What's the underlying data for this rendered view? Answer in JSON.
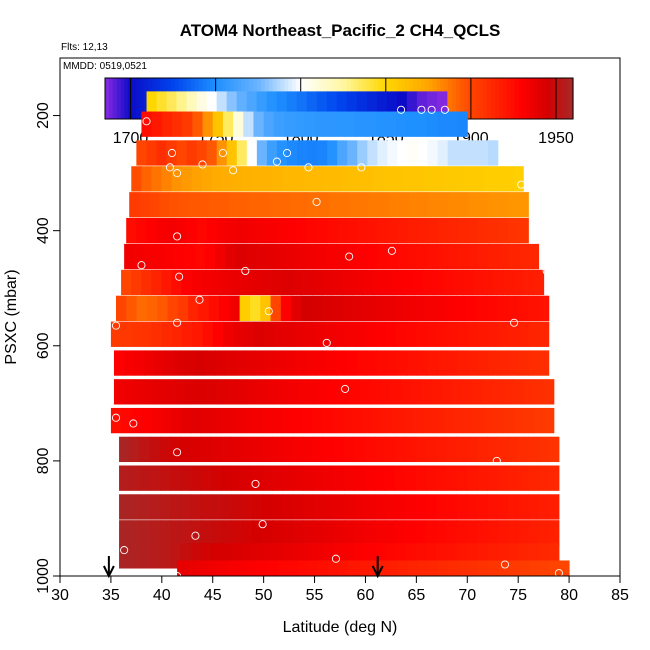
{
  "chart_data": {
    "type": "heatmap",
    "title": "ATOM4 Northeast_Pacific_2 CH4_QCLS",
    "flights_note": "Flts: 12,13",
    "date_note": "MMDD: 0519,0521",
    "xlabel": "Latitude (deg N)",
    "ylabel": "PSXC (mbar)",
    "xlim": [
      30,
      85
    ],
    "ylim": [
      1000,
      100
    ],
    "y_reversed": true,
    "x_ticks": [
      30,
      35,
      40,
      45,
      50,
      55,
      60,
      65,
      70,
      75,
      80,
      85
    ],
    "y_ticks": [
      200,
      400,
      600,
      800,
      1000
    ],
    "colorbar": {
      "min": 1685,
      "max": 1960,
      "ticks": [
        1700,
        1750,
        1800,
        1850,
        1900,
        1950
      ],
      "stops": [
        {
          "v": 1685,
          "c": "#8a2be2"
        },
        {
          "v": 1700,
          "c": "#0b0bc8"
        },
        {
          "v": 1725,
          "c": "#0044ee"
        },
        {
          "v": 1750,
          "c": "#1e90ff"
        },
        {
          "v": 1775,
          "c": "#6ab4ff"
        },
        {
          "v": 1800,
          "c": "#ffffff"
        },
        {
          "v": 1825,
          "c": "#fff7a0"
        },
        {
          "v": 1850,
          "c": "#ffd700"
        },
        {
          "v": 1875,
          "c": "#ffa500"
        },
        {
          "v": 1900,
          "c": "#ff4500"
        },
        {
          "v": 1930,
          "c": "#ff0000"
        },
        {
          "v": 1945,
          "c": "#d40000"
        },
        {
          "v": 1960,
          "c": "#a52a2a"
        }
      ]
    },
    "bands": [
      {
        "p": 180,
        "x0": 38.5,
        "x1": 68,
        "v": [
          1850,
          1843,
          1836,
          1828,
          1818,
          1808,
          1800,
          1790,
          1780,
          1772,
          1765,
          1758,
          1752,
          1748,
          1744,
          1740,
          1736,
          1732,
          1728,
          1724,
          1720,
          1716,
          1712,
          1708,
          1704,
          1700,
          1695,
          1690,
          1688,
          1686
        ]
      },
      {
        "p": 215,
        "x0": 38.0,
        "x1": 70,
        "v": [
          1925,
          1920,
          1915,
          1910,
          1905,
          1895,
          1880,
          1860,
          1835,
          1810,
          1790,
          1775,
          1765,
          1760,
          1758,
          1757,
          1756,
          1755,
          1755,
          1754,
          1754,
          1753,
          1753,
          1752,
          1752,
          1751,
          1750,
          1750,
          1749,
          1748,
          1748,
          1747
        ]
      },
      {
        "p": 265,
        "x0": 37.5,
        "x1": 73,
        "v": [
          1900,
          1905,
          1910,
          1905,
          1900,
          1905,
          1900,
          1895,
          1880,
          1860,
          1835,
          1800,
          1775,
          1760,
          1752,
          1748,
          1746,
          1745,
          1746,
          1752,
          1765,
          1775,
          1783,
          1790,
          1795,
          1798,
          1800,
          1802,
          1800,
          1798,
          1795,
          1790,
          1790,
          1790,
          1790,
          1788
        ]
      },
      {
        "p": 310,
        "x0": 37.0,
        "x1": 75.5,
        "v": [
          1898,
          1892,
          1888,
          1884,
          1880,
          1878,
          1876,
          1874,
          1872,
          1871,
          1870,
          1869,
          1868,
          1868,
          1867,
          1866,
          1866,
          1865,
          1865,
          1864,
          1864,
          1863,
          1862,
          1862,
          1861,
          1860,
          1860,
          1859,
          1859,
          1858,
          1858,
          1857,
          1857,
          1856,
          1856,
          1855,
          1855,
          1855,
          1854
        ]
      },
      {
        "p": 355,
        "x0": 36.8,
        "x1": 76,
        "v": [
          1905,
          1902,
          1900,
          1898,
          1897,
          1896,
          1895,
          1895,
          1894,
          1894,
          1893,
          1893,
          1892,
          1892,
          1891,
          1891,
          1890,
          1890,
          1889,
          1889,
          1888,
          1888,
          1887,
          1887,
          1886,
          1886,
          1885,
          1885,
          1884,
          1884,
          1883,
          1883,
          1882,
          1882,
          1881,
          1881,
          1880,
          1880,
          1879,
          1879
        ]
      },
      {
        "p": 400,
        "x0": 36.5,
        "x1": 76,
        "v": [
          1925,
          1928,
          1930,
          1932,
          1934,
          1932,
          1930,
          1928,
          1930,
          1932,
          1934,
          1935,
          1934,
          1933,
          1932,
          1931,
          1930,
          1929,
          1928,
          1927,
          1926,
          1925,
          1924,
          1923,
          1922,
          1921,
          1920,
          1919,
          1918,
          1917,
          1916,
          1915,
          1914,
          1913,
          1912,
          1911,
          1910,
          1909,
          1908,
          1907
        ]
      },
      {
        "p": 445,
        "x0": 36.3,
        "x1": 77,
        "v": [
          1935,
          1934,
          1933,
          1932,
          1931,
          1930,
          1929,
          1928,
          1930,
          1935,
          1940,
          1942,
          1941,
          1940,
          1939,
          1938,
          1937,
          1936,
          1935,
          1934,
          1933,
          1932,
          1931,
          1930,
          1929,
          1928,
          1927,
          1926,
          1925,
          1924,
          1923,
          1922,
          1921,
          1920,
          1919,
          1918,
          1917,
          1916,
          1915,
          1914,
          1913
        ]
      },
      {
        "p": 490,
        "x0": 36.0,
        "x1": 77.5,
        "v": [
          1900,
          1905,
          1910,
          1915,
          1920,
          1925,
          1930,
          1932,
          1934,
          1935,
          1936,
          1937,
          1938,
          1939,
          1940,
          1941,
          1942,
          1941,
          1940,
          1939,
          1938,
          1937,
          1936,
          1935,
          1934,
          1933,
          1932,
          1931,
          1930,
          1929,
          1928,
          1927,
          1926,
          1925,
          1924,
          1923,
          1922,
          1921,
          1920,
          1919,
          1918,
          1917
        ]
      },
      {
        "p": 535,
        "x0": 35.5,
        "x1": 78,
        "v": [
          1900,
          1895,
          1890,
          1892,
          1895,
          1900,
          1905,
          1915,
          1920,
          1925,
          1930,
          1935,
          1855,
          1845,
          1860,
          1900,
          1930,
          1940,
          1945,
          1944,
          1943,
          1942,
          1941,
          1940,
          1939,
          1938,
          1937,
          1936,
          1935,
          1934,
          1933,
          1932,
          1931,
          1930,
          1929,
          1928,
          1927,
          1926,
          1925,
          1924,
          1923,
          1922
        ]
      },
      {
        "p": 580,
        "x0": 35.0,
        "x1": 78,
        "v": [
          1905,
          1906,
          1907,
          1908,
          1910,
          1912,
          1915,
          1918,
          1920,
          1925,
          1930,
          1935,
          1938,
          1940,
          1942,
          1941,
          1940,
          1939,
          1938,
          1937,
          1936,
          1935,
          1934,
          1933,
          1932,
          1931,
          1930,
          1929,
          1928,
          1927,
          1926,
          1925,
          1924,
          1923,
          1922,
          1921,
          1920,
          1919,
          1918,
          1917,
          1916,
          1915,
          1914
        ]
      },
      {
        "p": 630,
        "x0": 35.3,
        "x1": 78,
        "v": [
          1930,
          1932,
          1934,
          1936,
          1938,
          1940,
          1942,
          1943,
          1944,
          1943,
          1942,
          1941,
          1940,
          1939,
          1938,
          1937,
          1936,
          1935,
          1934,
          1933,
          1932,
          1931,
          1930,
          1929,
          1928,
          1927,
          1926,
          1925,
          1924,
          1923,
          1922,
          1921,
          1920,
          1919,
          1918,
          1917,
          1916,
          1915,
          1914,
          1913,
          1912,
          1911,
          1910
        ]
      },
      {
        "p": 680,
        "x0": 35.3,
        "x1": 78.5,
        "v": [
          1935,
          1936,
          1937,
          1938,
          1939,
          1940,
          1941,
          1942,
          1943,
          1942,
          1941,
          1940,
          1939,
          1938,
          1937,
          1936,
          1935,
          1934,
          1933,
          1932,
          1931,
          1930,
          1929,
          1928,
          1927,
          1926,
          1925,
          1924,
          1923,
          1922,
          1921,
          1920,
          1919,
          1918,
          1917,
          1916,
          1915,
          1914,
          1913,
          1912,
          1911,
          1910,
          1909
        ]
      },
      {
        "p": 730,
        "x0": 35.0,
        "x1": 78.5,
        "v": [
          1925,
          1927,
          1929,
          1931,
          1933,
          1935,
          1937,
          1939,
          1940,
          1939,
          1938,
          1937,
          1936,
          1935,
          1934,
          1933,
          1932,
          1931,
          1930,
          1929,
          1928,
          1927,
          1926,
          1925,
          1924,
          1923,
          1922,
          1921,
          1920,
          1919,
          1918,
          1917,
          1916,
          1915,
          1914,
          1913,
          1912,
          1911,
          1910,
          1909,
          1908,
          1907,
          1906,
          1905
        ]
      },
      {
        "p": 780,
        "x0": 35.8,
        "x1": 79,
        "v": [
          1958,
          1955,
          1952,
          1950,
          1948,
          1946,
          1944,
          1943,
          1942,
          1941,
          1940,
          1939,
          1938,
          1937,
          1936,
          1935,
          1934,
          1933,
          1932,
          1931,
          1930,
          1929,
          1928,
          1927,
          1926,
          1925,
          1924,
          1923,
          1922,
          1921,
          1920,
          1919,
          1918,
          1917,
          1916,
          1915,
          1914,
          1913,
          1912,
          1911,
          1910,
          1909,
          1908
        ]
      },
      {
        "p": 830,
        "x0": 35.8,
        "x1": 79,
        "v": [
          1955,
          1954,
          1953,
          1952,
          1951,
          1950,
          1949,
          1948,
          1947,
          1946,
          1945,
          1944,
          1943,
          1942,
          1941,
          1940,
          1939,
          1938,
          1937,
          1936,
          1935,
          1934,
          1933,
          1932,
          1931,
          1930,
          1929,
          1928,
          1927,
          1926,
          1925,
          1924,
          1923,
          1922,
          1921,
          1920,
          1919,
          1918,
          1917,
          1916,
          1915,
          1914,
          1913
        ]
      },
      {
        "p": 880,
        "x0": 35.8,
        "x1": 79,
        "v": [
          1958,
          1957,
          1956,
          1955,
          1954,
          1953,
          1952,
          1951,
          1950,
          1950,
          1949,
          1948,
          1947,
          1946,
          1945,
          1944,
          1943,
          1942,
          1941,
          1940,
          1939,
          1938,
          1937,
          1936,
          1935,
          1934,
          1933,
          1932,
          1931,
          1930,
          1929,
          1928,
          1927,
          1926,
          1925,
          1924,
          1923,
          1922,
          1921,
          1920,
          1919,
          1918,
          1917
        ]
      },
      {
        "p": 925,
        "x0": 35.8,
        "x1": 79,
        "v": [
          1958,
          1957,
          1956,
          1955,
          1954,
          1953,
          1952,
          1951,
          1950,
          1949,
          1948,
          1947,
          1946,
          1945,
          1944,
          1943,
          1942,
          1941,
          1940,
          1939,
          1938,
          1937,
          1936,
          1935,
          1934,
          1933,
          1932,
          1931,
          1930,
          1929,
          1928,
          1927,
          1926,
          1925,
          1924,
          1923,
          1922,
          1921,
          1920,
          1919,
          1918,
          1917,
          1916
        ]
      },
      {
        "p": 965,
        "x0": 35.8,
        "x1": 79,
        "v": [
          1958,
          1957,
          1956,
          1955,
          1954,
          1952,
          1950,
          1948,
          1946,
          1945,
          1944,
          1943,
          1942,
          1941,
          1940,
          1939,
          1938,
          1937,
          1936,
          1935,
          1934,
          1933,
          1932,
          1931,
          1930,
          1929,
          1928,
          1927,
          1926,
          1925,
          1924,
          1923,
          1922,
          1921,
          1920,
          1919,
          1918,
          1917,
          1916,
          1915,
          1914,
          1913,
          1912
        ]
      },
      {
        "p": 995,
        "x0": 41.5,
        "x1": 80,
        "v": [
          1938,
          1937,
          1936,
          1935,
          1934,
          1933,
          1932,
          1931,
          1930,
          1929,
          1928,
          1927,
          1926,
          1925,
          1924,
          1923,
          1922,
          1921,
          1920,
          1919,
          1918,
          1917,
          1916,
          1915,
          1914,
          1913,
          1912,
          1911,
          1910,
          1909,
          1908,
          1907,
          1906,
          1905,
          1904,
          1903,
          1902,
          1901,
          1900
        ]
      }
    ],
    "band_half_height": 22,
    "points": [
      [
        38.5,
        210
      ],
      [
        63.5,
        190
      ],
      [
        65.5,
        190
      ],
      [
        66.5,
        190
      ],
      [
        67.8,
        190
      ],
      [
        41,
        265
      ],
      [
        40.8,
        290
      ],
      [
        41.5,
        300
      ],
      [
        44,
        285
      ],
      [
        46,
        265
      ],
      [
        47,
        295
      ],
      [
        51.3,
        280
      ],
      [
        52.3,
        265
      ],
      [
        54.4,
        290
      ],
      [
        59.6,
        290
      ],
      [
        55.2,
        350
      ],
      [
        75.3,
        320
      ],
      [
        41.5,
        410
      ],
      [
        38,
        460
      ],
      [
        41.7,
        480
      ],
      [
        48.2,
        470
      ],
      [
        58.4,
        445
      ],
      [
        62.6,
        435
      ],
      [
        77.8,
        470
      ],
      [
        43.7,
        520
      ],
      [
        50.5,
        540
      ],
      [
        41.5,
        560
      ],
      [
        35.5,
        565
      ],
      [
        74.6,
        560
      ],
      [
        56.2,
        595
      ],
      [
        58,
        675
      ],
      [
        35.5,
        725
      ],
      [
        37.2,
        735
      ],
      [
        41.5,
        785
      ],
      [
        72.9,
        800
      ],
      [
        49.2,
        840
      ],
      [
        49.9,
        910
      ],
      [
        43.3,
        930
      ],
      [
        36.3,
        955
      ],
      [
        57.1,
        970
      ],
      [
        73.7,
        980
      ],
      [
        41.5,
        1000
      ],
      [
        79,
        995
      ]
    ],
    "flight_markers_lat": [
      34.8,
      61.2
    ]
  }
}
